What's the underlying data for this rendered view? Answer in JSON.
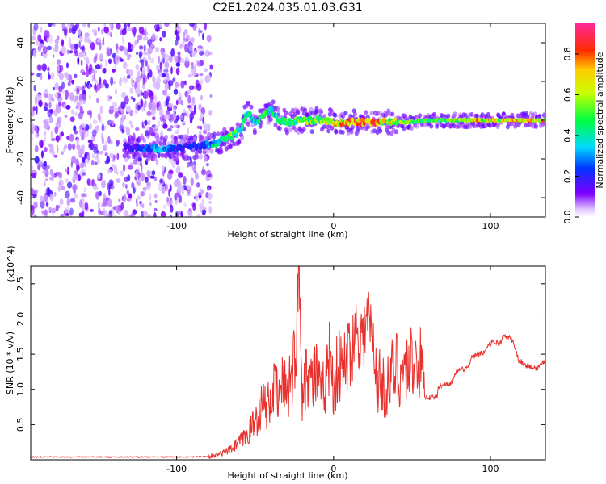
{
  "title": "C2E1.2024.035.01.03.G31",
  "chart_data": [
    {
      "type": "heatmap",
      "xlabel": "Height of straight line (km)",
      "ylabel": "Frequency (Hz)",
      "xlim": [
        -193,
        135
      ],
      "ylim": [
        -50,
        50
      ],
      "xticks": [
        -100,
        0,
        100
      ],
      "yticks": [
        -40,
        -20,
        0,
        20,
        40
      ],
      "colorbar": {
        "label": "Normalized spectral amplitude",
        "range": [
          0.0,
          0.95
        ],
        "ticks": [
          0.0,
          0.2,
          0.4,
          0.6,
          0.8
        ]
      },
      "noise_region_x": [
        -193,
        -78
      ],
      "trace": [
        {
          "x": -133,
          "y": -14,
          "amp": 0.15
        },
        {
          "x": -112,
          "y": -15,
          "amp": 0.35
        },
        {
          "x": -95,
          "y": -14,
          "amp": 0.2
        },
        {
          "x": -82,
          "y": -13,
          "amp": 0.25
        },
        {
          "x": -75,
          "y": -12,
          "amp": 0.45
        },
        {
          "x": -70,
          "y": -10,
          "amp": 0.5
        },
        {
          "x": -64,
          "y": -8,
          "amp": 0.55
        },
        {
          "x": -59,
          "y": -5,
          "amp": 0.45
        },
        {
          "x": -55,
          "y": 4,
          "amp": 0.45
        },
        {
          "x": -50,
          "y": -1,
          "amp": 0.4
        },
        {
          "x": -45,
          "y": 2,
          "amp": 0.5
        },
        {
          "x": -40,
          "y": 6,
          "amp": 0.45
        },
        {
          "x": -35,
          "y": 0,
          "amp": 0.45
        },
        {
          "x": -28,
          "y": -1,
          "amp": 0.5
        },
        {
          "x": -20,
          "y": 0,
          "amp": 0.6
        },
        {
          "x": -10,
          "y": 0,
          "amp": 0.55
        },
        {
          "x": -3,
          "y": 0,
          "amp": 0.75
        },
        {
          "x": 2,
          "y": -2,
          "amp": 0.75
        },
        {
          "x": 10,
          "y": -1,
          "amp": 0.8
        },
        {
          "x": 20,
          "y": -1,
          "amp": 0.85
        },
        {
          "x": 30,
          "y": -1,
          "amp": 0.8
        },
        {
          "x": 40,
          "y": -1,
          "amp": 0.65
        },
        {
          "x": 50,
          "y": -1,
          "amp": 0.55
        },
        {
          "x": 60,
          "y": 0,
          "amp": 0.55
        },
        {
          "x": 70,
          "y": 0,
          "amp": 0.55
        },
        {
          "x": 80,
          "y": 0,
          "amp": 0.6
        },
        {
          "x": 90,
          "y": 0,
          "amp": 0.8
        },
        {
          "x": 100,
          "y": 0,
          "amp": 0.7
        },
        {
          "x": 110,
          "y": 0,
          "amp": 0.7
        },
        {
          "x": 120,
          "y": 0,
          "amp": 0.75
        },
        {
          "x": 130,
          "y": 0,
          "amp": 0.8
        },
        {
          "x": 135,
          "y": 0,
          "amp": 0.8
        }
      ]
    },
    {
      "type": "line",
      "xlabel": "Height of straight line (km)",
      "ylabel": "SNR (10 * v/v)",
      "y_multiplier": "(x10^4)",
      "xlim": [
        -193,
        135
      ],
      "ylim": [
        0,
        2.75
      ],
      "xticks": [
        -100,
        0,
        100
      ],
      "yticks": [
        0.5,
        1.0,
        1.5,
        2.0,
        2.5
      ],
      "series": [
        {
          "color": "#e8302c",
          "x": [
            -193,
            -170,
            -140,
            -110,
            -90,
            -80,
            -72,
            -65,
            -60,
            -55,
            -50,
            -45,
            -42,
            -38,
            -35,
            -32,
            -29,
            -26,
            -24,
            -22,
            -20,
            -17,
            -14,
            -11,
            -8,
            -5,
            -2,
            0,
            3,
            6,
            9,
            12,
            15,
            18,
            21,
            23,
            25,
            28,
            31,
            34,
            37,
            40,
            43,
            46,
            49,
            52,
            55,
            57,
            58,
            62,
            66,
            67,
            72,
            76,
            78,
            82,
            86,
            88,
            92,
            96,
            98,
            102,
            106,
            108,
            112,
            114,
            118,
            122,
            126,
            130,
            135
          ],
          "y": [
            0.04,
            0.04,
            0.04,
            0.04,
            0.04,
            0.05,
            0.08,
            0.15,
            0.25,
            0.35,
            0.55,
            0.8,
            0.75,
            1.0,
            0.85,
            1.1,
            1.05,
            1.3,
            1.55,
            2.75,
            1.0,
            1.35,
            1.1,
            1.25,
            0.85,
            1.2,
            1.55,
            1.05,
            1.35,
            1.25,
            1.5,
            1.65,
            1.9,
            1.7,
            1.95,
            2.0,
            1.6,
            1.15,
            1.05,
            1.0,
            1.2,
            1.35,
            1.25,
            1.3,
            1.4,
            1.42,
            1.38,
            1.2,
            0.9,
            0.88,
            0.9,
            1.05,
            1.08,
            1.1,
            1.25,
            1.28,
            1.32,
            1.45,
            1.5,
            1.52,
            1.62,
            1.68,
            1.65,
            1.75,
            1.73,
            1.7,
            1.42,
            1.35,
            1.32,
            1.3,
            1.42
          ]
        }
      ]
    }
  ]
}
